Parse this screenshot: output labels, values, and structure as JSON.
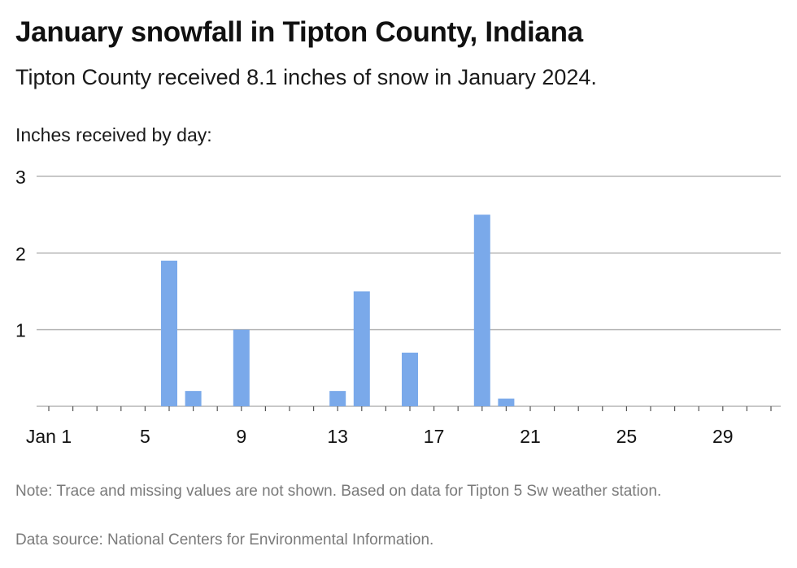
{
  "header": {
    "title": "January snowfall in Tipton County, Indiana",
    "subtitle": "Tipton County received 8.1 inches of snow in January 2024.",
    "ylabel": "Inches received by day:"
  },
  "footer": {
    "note": "Note: Trace and missing values are not shown. Based on data for Tipton 5 Sw weather station.",
    "source": "Data source: National Centers for Environmental Information."
  },
  "chart_data": {
    "type": "bar",
    "title": "January snowfall in Tipton County, Indiana",
    "subtitle": "Tipton County received 8.1 inches of snow in January 2024.",
    "ylabel": "Inches received by day:",
    "xlabel": "",
    "ylim": [
      0,
      3
    ],
    "xlim": [
      1,
      31
    ],
    "y_ticks": [
      1,
      2,
      3
    ],
    "x_ticks": [
      {
        "day": 1,
        "label": "Jan 1"
      },
      {
        "day": 5,
        "label": "5"
      },
      {
        "day": 9,
        "label": "9"
      },
      {
        "day": 13,
        "label": "13"
      },
      {
        "day": 17,
        "label": "17"
      },
      {
        "day": 21,
        "label": "21"
      },
      {
        "day": 25,
        "label": "25"
      },
      {
        "day": 29,
        "label": "29"
      }
    ],
    "grid": true,
    "bar_color": "#7aa9ea",
    "points": [
      {
        "day": 6,
        "value": 1.9
      },
      {
        "day": 7,
        "value": 0.2
      },
      {
        "day": 9,
        "value": 1.0
      },
      {
        "day": 13,
        "value": 0.2
      },
      {
        "day": 14,
        "value": 1.5
      },
      {
        "day": 16,
        "value": 0.7
      },
      {
        "day": 19,
        "value": 2.5
      },
      {
        "day": 20,
        "value": 0.1
      }
    ]
  }
}
